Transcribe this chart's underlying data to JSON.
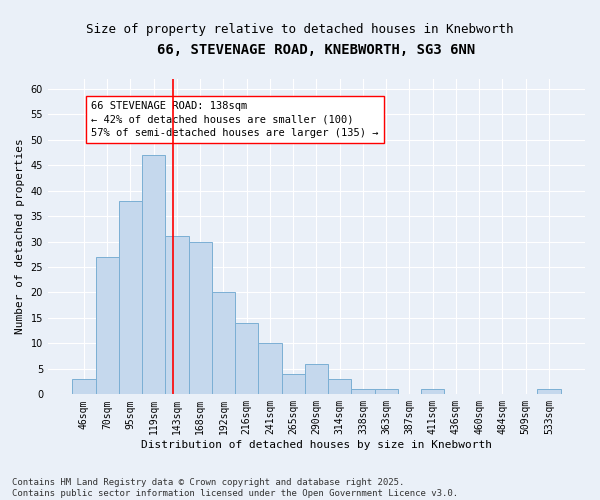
{
  "title": "66, STEVENAGE ROAD, KNEBWORTH, SG3 6NN",
  "subtitle": "Size of property relative to detached houses in Knebworth",
  "xlabel": "Distribution of detached houses by size in Knebworth",
  "ylabel": "Number of detached properties",
  "categories": [
    "46sqm",
    "70sqm",
    "95sqm",
    "119sqm",
    "143sqm",
    "168sqm",
    "192sqm",
    "216sqm",
    "241sqm",
    "265sqm",
    "290sqm",
    "314sqm",
    "338sqm",
    "363sqm",
    "387sqm",
    "411sqm",
    "436sqm",
    "460sqm",
    "484sqm",
    "509sqm",
    "533sqm"
  ],
  "values": [
    3,
    27,
    38,
    47,
    31,
    30,
    20,
    14,
    10,
    4,
    6,
    3,
    1,
    1,
    0,
    1,
    0,
    0,
    0,
    0,
    1
  ],
  "bar_color": "#c5d8ed",
  "bar_edge_color": "#7bafd4",
  "vline_x": 3.84,
  "vline_color": "red",
  "annotation_box_text": "66 STEVENAGE ROAD: 138sqm\n← 42% of detached houses are smaller (100)\n57% of semi-detached houses are larger (135) →",
  "ylim": [
    0,
    62
  ],
  "yticks": [
    0,
    5,
    10,
    15,
    20,
    25,
    30,
    35,
    40,
    45,
    50,
    55,
    60
  ],
  "background_color": "#eaf0f8",
  "grid_color": "#ffffff",
  "footer_text": "Contains HM Land Registry data © Crown copyright and database right 2025.\nContains public sector information licensed under the Open Government Licence v3.0.",
  "title_fontsize": 10,
  "subtitle_fontsize": 9,
  "axis_label_fontsize": 8,
  "tick_fontsize": 7,
  "annotation_fontsize": 7.5,
  "footer_fontsize": 6.5
}
